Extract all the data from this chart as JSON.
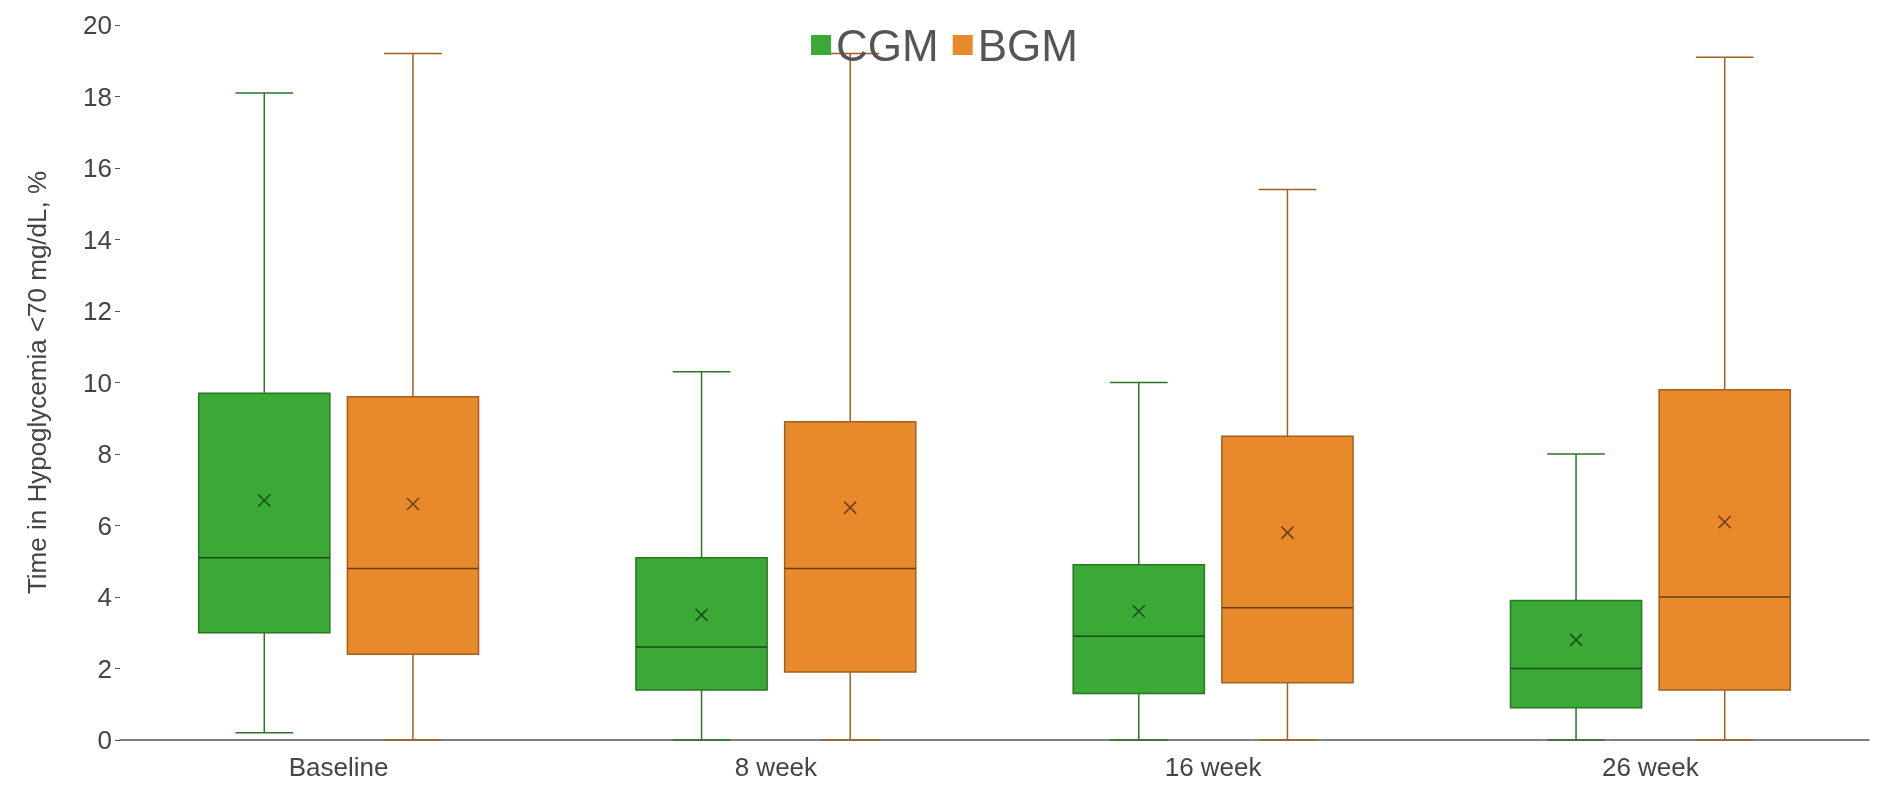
{
  "chart_data": {
    "type": "box",
    "ylabel": "Time in Hypoglycemia <70 mg/dL, %",
    "categories": [
      "Baseline",
      "8 week",
      "16 week",
      "26 week"
    ],
    "ylim": [
      0,
      20
    ],
    "yticks": [
      0,
      2,
      4,
      6,
      8,
      10,
      12,
      14,
      16,
      18,
      20
    ],
    "grid": false,
    "legend": "top",
    "marker": "cross",
    "series": [
      {
        "name": "CGM",
        "color": "#3aa935",
        "boxes": [
          {
            "low": 0.2,
            "q1": 3.0,
            "median": 5.1,
            "q3": 9.7,
            "high": 18.1,
            "mean": 6.7
          },
          {
            "low": 0,
            "q1": 1.4,
            "median": 2.6,
            "q3": 5.1,
            "high": 10.3,
            "mean": 3.5
          },
          {
            "low": 0,
            "q1": 1.3,
            "median": 2.9,
            "q3": 4.9,
            "high": 10.0,
            "mean": 3.6
          },
          {
            "low": 0,
            "q1": 0.9,
            "median": 2.0,
            "q3": 3.9,
            "high": 8.0,
            "mean": 2.8
          }
        ]
      },
      {
        "name": "BGM",
        "color": "#e8892c",
        "boxes": [
          {
            "low": 0,
            "q1": 2.4,
            "median": 4.8,
            "q3": 9.6,
            "high": 19.2,
            "mean": 6.6
          },
          {
            "low": 0,
            "q1": 1.9,
            "median": 4.8,
            "q3": 8.9,
            "high": 19.2,
            "mean": 6.5
          },
          {
            "low": 0,
            "q1": 1.6,
            "median": 3.7,
            "q3": 8.5,
            "high": 15.4,
            "mean": 5.8
          },
          {
            "low": 0,
            "q1": 1.4,
            "median": 4.0,
            "q3": 9.8,
            "high": 19.1,
            "mean": 6.1
          }
        ]
      }
    ]
  }
}
